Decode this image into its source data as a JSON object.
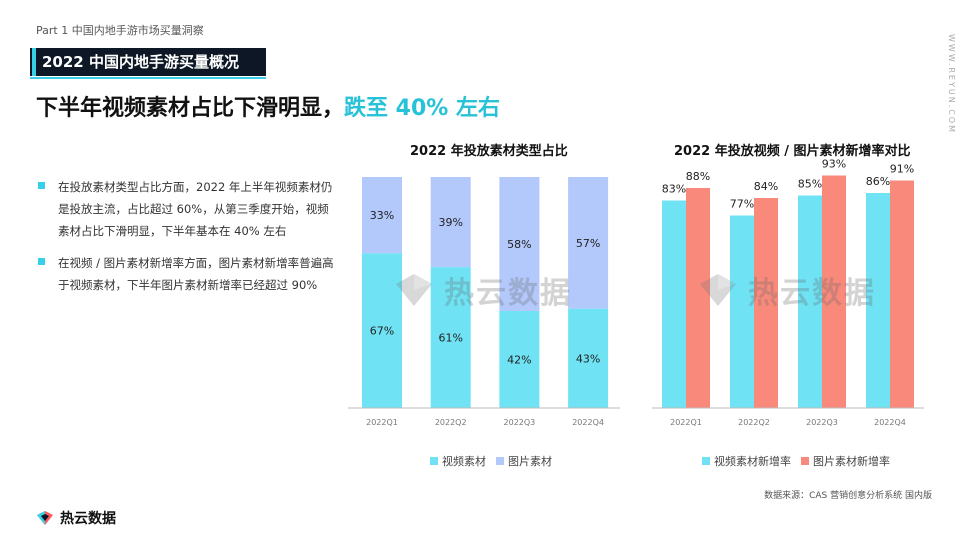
{
  "header": {
    "part_label": "Part 1  中国内地手游市场买量洞察",
    "section_title": "2022 中国内地手游买量概况",
    "headline_main": "下半年视频素材占比下滑明显，",
    "headline_highlight": "跌至 40% 左右",
    "side_url": "WWW.REYUN.COM"
  },
  "bullets": [
    "在投放素材类型占比方面，2022 年上半年视频素材仍是投放主流，占比超过 60%，从第三季度开始，视频素材占比下滑明显，下半年基本在 40% 左右",
    "在视频 / 图片素材新增率方面，图片素材新增率普遍高于视频素材，下半年图片素材新增率已经超过 90%"
  ],
  "watermark": "热云数据",
  "colors": {
    "cyan": "#6fe3f4",
    "lavender": "#b3c8fb",
    "salmon": "#f98a7b",
    "accent": "#38d0e6",
    "dark": "#0d1726"
  },
  "chart_data": [
    {
      "type": "bar",
      "stacked": true,
      "title": "2022 年投放素材类型占比",
      "categories": [
        "2022Q1",
        "2022Q2",
        "2022Q3",
        "2022Q4"
      ],
      "series": [
        {
          "name": "视频素材",
          "values": [
            67,
            61,
            42,
            43
          ],
          "labels": [
            "67%",
            "61%",
            "42%",
            "43%"
          ],
          "color": "#6fe3f4"
        },
        {
          "name": "图片素材",
          "values": [
            33,
            39,
            58,
            57
          ],
          "labels": [
            "33%",
            "39%",
            "58%",
            "57%"
          ],
          "color": "#b3c8fb"
        }
      ],
      "ylim": [
        0,
        100
      ]
    },
    {
      "type": "bar",
      "stacked": false,
      "title": "2022 年投放视频 / 图片素材新增率对比",
      "categories": [
        "2022Q1",
        "2022Q2",
        "2022Q3",
        "2022Q4"
      ],
      "series": [
        {
          "name": "视频素材新增率",
          "values": [
            83,
            77,
            85,
            86
          ],
          "labels": [
            "83%",
            "77%",
            "85%",
            "86%"
          ],
          "color": "#6fe3f4"
        },
        {
          "name": "图片素材新增率",
          "values": [
            88,
            84,
            93,
            91
          ],
          "labels": [
            "88%",
            "84%",
            "93%",
            "91%"
          ],
          "color": "#f98a7b"
        }
      ],
      "ylim": [
        0,
        100
      ]
    }
  ],
  "footer": {
    "source": "数据来源：CAS 营销创意分析系统 国内版",
    "logo_text": "热云数据"
  }
}
